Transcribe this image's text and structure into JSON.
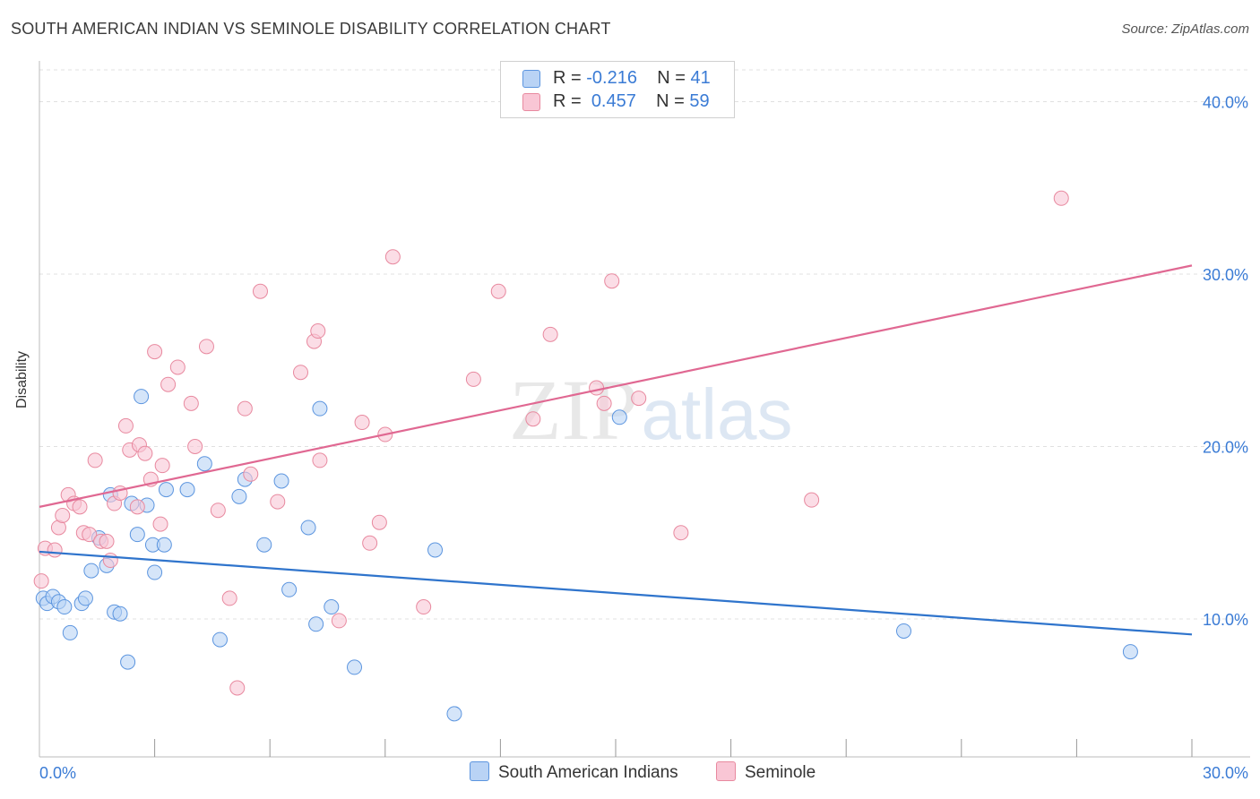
{
  "title": "SOUTH AMERICAN INDIAN VS SEMINOLE DISABILITY CORRELATION CHART",
  "source": "Source: ZipAtlas.com",
  "watermark": "ZIPatlas",
  "legend_top": [
    {
      "r_label": "R =",
      "r_value": "-0.216",
      "n_label": "N =",
      "n_value": "41"
    },
    {
      "r_label": "R =",
      "r_value": "0.457",
      "n_label": "N =",
      "n_value": "59"
    }
  ],
  "colors": {
    "blue_fill": "#b9d3f5",
    "blue_stroke": "#5c95df",
    "blue_line": "#2f74cc",
    "pink_fill": "#f9c6d5",
    "pink_stroke": "#e8899f",
    "pink_line": "#e06892",
    "tick_label": "#3a7bd5",
    "grid": "#e0e0e0"
  },
  "chart_data": {
    "type": "scatter",
    "title": "SOUTH AMERICAN INDIAN VS SEMINOLE DISABILITY CORRELATION CHART",
    "xlabel": "",
    "ylabel": "Disability",
    "xlim": [
      0,
      30
    ],
    "ylim": [
      2,
      42
    ],
    "x_tick_labels": [
      "0.0%",
      "30.0%"
    ],
    "y_ticks": [
      10,
      20,
      30,
      40
    ],
    "y_tick_labels": [
      "10.0%",
      "20.0%",
      "30.0%",
      "40.0%"
    ],
    "grid": true,
    "legend_position": "bottom",
    "series": [
      {
        "name": "South American Indians",
        "color": "blue",
        "trend": {
          "x": [
            0,
            30
          ],
          "y": [
            13.9,
            9.1
          ]
        },
        "points": [
          [
            0.1,
            11.2
          ],
          [
            0.2,
            10.9
          ],
          [
            0.35,
            11.3
          ],
          [
            0.5,
            11.0
          ],
          [
            0.65,
            10.7
          ],
          [
            0.8,
            9.2
          ],
          [
            1.1,
            10.9
          ],
          [
            1.2,
            11.2
          ],
          [
            1.35,
            12.8
          ],
          [
            1.55,
            14.7
          ],
          [
            1.75,
            13.1
          ],
          [
            1.85,
            17.2
          ],
          [
            1.95,
            10.4
          ],
          [
            2.1,
            10.3
          ],
          [
            2.3,
            7.5
          ],
          [
            2.4,
            16.7
          ],
          [
            2.55,
            14.9
          ],
          [
            2.65,
            22.9
          ],
          [
            2.8,
            16.6
          ],
          [
            2.95,
            14.3
          ],
          [
            3.0,
            12.7
          ],
          [
            3.25,
            14.3
          ],
          [
            3.3,
            17.5
          ],
          [
            3.85,
            17.5
          ],
          [
            4.3,
            19.0
          ],
          [
            4.7,
            8.8
          ],
          [
            5.2,
            17.1
          ],
          [
            5.35,
            18.1
          ],
          [
            5.85,
            14.3
          ],
          [
            6.3,
            18.0
          ],
          [
            6.5,
            11.7
          ],
          [
            7.0,
            15.3
          ],
          [
            7.2,
            9.7
          ],
          [
            7.3,
            22.2
          ],
          [
            7.6,
            10.7
          ],
          [
            8.2,
            7.2
          ],
          [
            10.3,
            14.0
          ],
          [
            10.8,
            4.5
          ],
          [
            15.1,
            21.7
          ],
          [
            22.5,
            9.3
          ],
          [
            28.4,
            8.1
          ]
        ]
      },
      {
        "name": "Seminole",
        "color": "pink",
        "trend": {
          "x": [
            0,
            30
          ],
          "y": [
            16.5,
            30.5
          ]
        },
        "points": [
          [
            0.15,
            14.1
          ],
          [
            0.4,
            14.0
          ],
          [
            0.5,
            15.3
          ],
          [
            0.6,
            16.0
          ],
          [
            0.75,
            17.2
          ],
          [
            0.9,
            16.7
          ],
          [
            1.05,
            16.5
          ],
          [
            1.15,
            15.0
          ],
          [
            1.3,
            14.9
          ],
          [
            1.45,
            19.2
          ],
          [
            1.6,
            14.5
          ],
          [
            1.75,
            14.5
          ],
          [
            1.85,
            13.4
          ],
          [
            1.95,
            16.7
          ],
          [
            2.1,
            17.3
          ],
          [
            2.25,
            21.2
          ],
          [
            2.35,
            19.8
          ],
          [
            2.55,
            16.5
          ],
          [
            2.6,
            20.1
          ],
          [
            2.75,
            19.6
          ],
          [
            2.9,
            18.1
          ],
          [
            3.0,
            25.5
          ],
          [
            3.15,
            15.5
          ],
          [
            3.2,
            18.9
          ],
          [
            3.35,
            23.6
          ],
          [
            3.6,
            24.6
          ],
          [
            3.95,
            22.5
          ],
          [
            4.05,
            20.0
          ],
          [
            4.35,
            25.8
          ],
          [
            4.65,
            16.3
          ],
          [
            4.95,
            11.2
          ],
          [
            5.15,
            6.0
          ],
          [
            5.35,
            22.2
          ],
          [
            5.5,
            18.4
          ],
          [
            5.75,
            29.0
          ],
          [
            6.2,
            16.8
          ],
          [
            6.8,
            24.3
          ],
          [
            7.15,
            26.1
          ],
          [
            7.25,
            26.7
          ],
          [
            7.3,
            19.2
          ],
          [
            7.8,
            9.9
          ],
          [
            8.4,
            21.4
          ],
          [
            8.6,
            14.4
          ],
          [
            8.85,
            15.6
          ],
          [
            9.0,
            20.7
          ],
          [
            9.2,
            31.0
          ],
          [
            10.0,
            10.7
          ],
          [
            11.3,
            23.9
          ],
          [
            11.95,
            29.0
          ],
          [
            12.85,
            21.6
          ],
          [
            13.3,
            26.5
          ],
          [
            14.5,
            23.4
          ],
          [
            14.7,
            22.5
          ],
          [
            14.9,
            29.6
          ],
          [
            15.6,
            22.8
          ],
          [
            16.7,
            15.0
          ],
          [
            20.1,
            16.9
          ],
          [
            26.6,
            34.4
          ],
          [
            0.05,
            12.2
          ]
        ]
      }
    ]
  },
  "legend_bottom": [
    "South American Indians",
    "Seminole"
  ]
}
